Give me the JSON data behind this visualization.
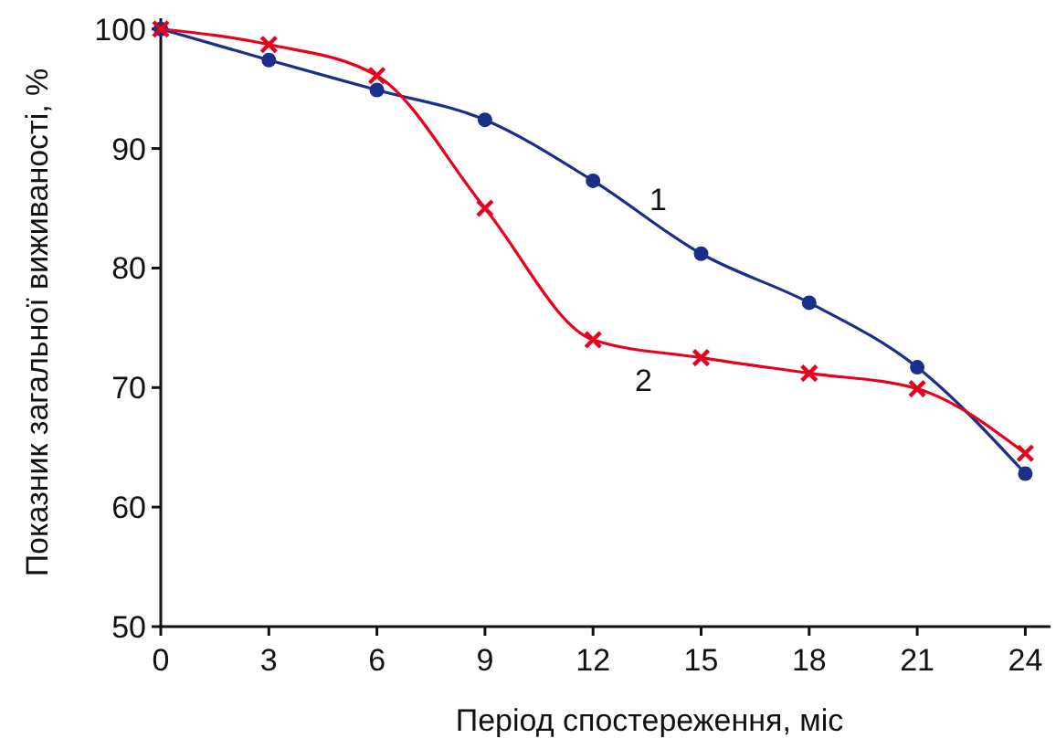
{
  "chart_data": {
    "type": "line",
    "xlabel": "Період спостереження, міс",
    "ylabel": "Показник загальної виживаності, %",
    "x": [
      0,
      3,
      6,
      9,
      12,
      15,
      18,
      21,
      24
    ],
    "series": [
      {
        "name": "1",
        "color": "#1a2f8a",
        "marker": "circle",
        "values": [
          100,
          97.4,
          94.9,
          92.4,
          87.3,
          81.2,
          77.1,
          71.7,
          62.8
        ]
      },
      {
        "name": "2",
        "color": "#e8001c",
        "marker": "cross",
        "values": [
          100,
          98.7,
          96.1,
          85.0,
          74.0,
          72.5,
          71.2,
          69.9,
          64.5
        ]
      }
    ],
    "xlim": [
      0,
      24.7
    ],
    "xticks": [
      0,
      3,
      6,
      9,
      12,
      15,
      18,
      21,
      24
    ],
    "ylim": [
      50,
      100.9
    ],
    "yticks": [
      50,
      60,
      70,
      80,
      90,
      100
    ],
    "grid": false,
    "line_style": "solid"
  }
}
